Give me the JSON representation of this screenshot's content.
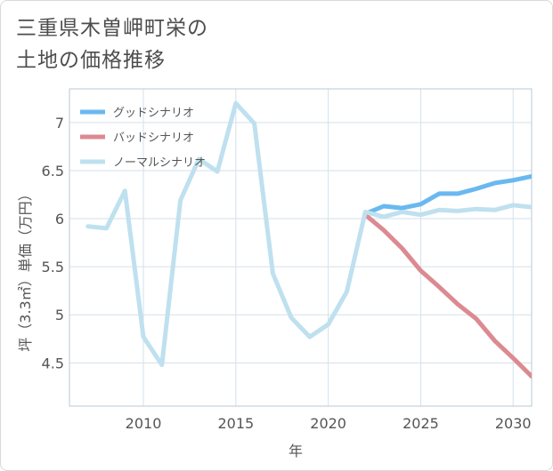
{
  "title": {
    "line1": "三重県木曽岬町栄の",
    "line2": "土地の価格推移"
  },
  "chart_data": {
    "type": "line",
    "xlabel": "年",
    "ylabel": "坪（3.3㎡）単価（万円）",
    "xlim": [
      2006,
      2031
    ],
    "ylim": [
      4.05,
      7.35
    ],
    "xticks": [
      2010,
      2015,
      2020,
      2025,
      2030
    ],
    "yticks": [
      4.5,
      5,
      5.5,
      6,
      6.5,
      7
    ],
    "ytick_labels": [
      "4.5",
      "5",
      "5.5",
      "6",
      "6.5",
      "7"
    ],
    "grid": true,
    "legend_position": "top-left",
    "series": [
      {
        "name": "グッドシナリオ",
        "color": "#6ab8f0",
        "x": [
          2022,
          2023,
          2024,
          2025,
          2026,
          2027,
          2028,
          2029,
          2030,
          2031
        ],
        "y": [
          6.05,
          6.13,
          6.11,
          6.15,
          6.26,
          6.26,
          6.31,
          6.37,
          6.4,
          6.44
        ]
      },
      {
        "name": "バッドシナリオ",
        "color": "#dc8a91",
        "x": [
          2022,
          2023,
          2024,
          2025,
          2026,
          2027,
          2028,
          2029,
          2030,
          2031
        ],
        "y": [
          6.04,
          5.88,
          5.69,
          5.46,
          5.29,
          5.11,
          4.96,
          4.73,
          4.55,
          4.36
        ]
      },
      {
        "name": "ノーマルシナリオ",
        "color": "#bfe0ef",
        "x": [
          2007,
          2008,
          2009,
          2010,
          2011,
          2012,
          2013,
          2014,
          2015,
          2016,
          2017,
          2018,
          2019,
          2020,
          2021,
          2022,
          2023,
          2024,
          2025,
          2026,
          2027,
          2028,
          2029,
          2030,
          2031
        ],
        "y": [
          5.92,
          5.9,
          6.29,
          4.77,
          4.48,
          6.19,
          6.62,
          6.49,
          7.2,
          6.99,
          5.43,
          4.97,
          4.77,
          4.9,
          5.24,
          6.07,
          6.02,
          6.07,
          6.04,
          6.09,
          6.08,
          6.1,
          6.09,
          6.14,
          6.12
        ]
      }
    ]
  }
}
